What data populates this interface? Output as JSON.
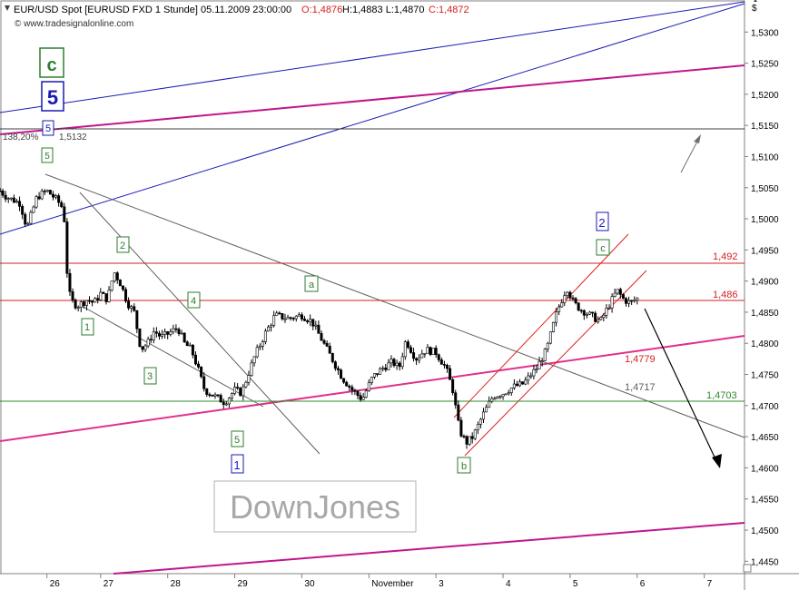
{
  "header": {
    "title_line": "EUR/USD Spot [EURUSD FXD  1 Stunde] 05.11.2009 23:00:00",
    "ohlc_open": "O:1,4876",
    "ohlc_hlc": "H:1,4883 L:1,4870",
    "ohlc_close": "C:1,4872",
    "source": "© www.tradesignalonline.com"
  },
  "watermark": "DownJones",
  "colors": {
    "candle": "#000000",
    "blue_line": "#1a1ab4",
    "magenta_line": "#c0168c",
    "pink_line": "#e0308c",
    "red_level": "#d42020",
    "green_level": "#2e8b2e",
    "grey_line": "#606060",
    "red_channel": "#e02020",
    "wave_green": "#2e7d2e",
    "wave_blue": "#1a1ab4"
  },
  "chart_data": {
    "type": "candlestick",
    "symbol": "EUR/USD",
    "timeframe": "1 Stunde",
    "ylabel": "$",
    "ylim": [
      1.443,
      1.535
    ],
    "y_ticks": [
      "1,5300",
      "1,5250",
      "1,5200",
      "1,5150",
      "1,5100",
      "1,5050",
      "1,5000",
      "1,4950",
      "1,4900",
      "1,4850",
      "1,4800",
      "1,4750",
      "1,4700",
      "1,4650",
      "1,4600",
      "1,4550",
      "1,4500",
      "1,4450"
    ],
    "x_ticks": [
      {
        "label": "26",
        "x": 0.2
      },
      {
        "label": "27",
        "x": 1
      },
      {
        "label": "28",
        "x": 2
      },
      {
        "label": "29",
        "x": 3
      },
      {
        "label": "30",
        "x": 4
      },
      {
        "label": "November",
        "x": 5
      },
      {
        "label": "3",
        "x": 6
      },
      {
        "label": "4",
        "x": 7
      },
      {
        "label": "5",
        "x": 8
      },
      {
        "label": "6",
        "x": 9
      },
      {
        "label": "7",
        "x": 10
      }
    ],
    "x_range": [
      -0.5,
      10.6
    ],
    "price_path": [
      [
        -0.5,
        1.5045
      ],
      [
        -0.4,
        1.5035
      ],
      [
        -0.2,
        1.5025
      ],
      [
        -0.1,
        1.4985
      ],
      [
        0.05,
        1.5035
      ],
      [
        0.2,
        1.5045
      ],
      [
        0.35,
        1.503
      ],
      [
        0.45,
        1.5015
      ],
      [
        0.5,
        1.4915
      ],
      [
        0.55,
        1.487
      ],
      [
        0.65,
        1.486
      ],
      [
        0.8,
        1.487
      ],
      [
        0.9,
        1.4865
      ],
      [
        1.0,
        1.488
      ],
      [
        1.1,
        1.487
      ],
      [
        1.2,
        1.4915
      ],
      [
        1.3,
        1.4895
      ],
      [
        1.4,
        1.4865
      ],
      [
        1.5,
        1.485
      ],
      [
        1.6,
        1.479
      ],
      [
        1.7,
        1.48
      ],
      [
        1.8,
        1.482
      ],
      [
        1.9,
        1.481
      ],
      [
        2.0,
        1.4815
      ],
      [
        2.15,
        1.4825
      ],
      [
        2.25,
        1.48
      ],
      [
        2.35,
        1.479
      ],
      [
        2.45,
        1.476
      ],
      [
        2.55,
        1.4725
      ],
      [
        2.7,
        1.4715
      ],
      [
        2.85,
        1.4705
      ],
      [
        3.0,
        1.4725
      ],
      [
        3.1,
        1.472
      ],
      [
        3.2,
        1.475
      ],
      [
        3.3,
        1.478
      ],
      [
        3.45,
        1.4815
      ],
      [
        3.6,
        1.4845
      ],
      [
        3.8,
        1.484
      ],
      [
        4.0,
        1.4845
      ],
      [
        4.15,
        1.4835
      ],
      [
        4.3,
        1.4805
      ],
      [
        4.45,
        1.4775
      ],
      [
        4.6,
        1.4745
      ],
      [
        4.75,
        1.4725
      ],
      [
        4.9,
        1.471
      ],
      [
        5.05,
        1.4745
      ],
      [
        5.2,
        1.476
      ],
      [
        5.35,
        1.477
      ],
      [
        5.45,
        1.476
      ],
      [
        5.55,
        1.4805
      ],
      [
        5.7,
        1.4775
      ],
      [
        5.85,
        1.479
      ],
      [
        6.0,
        1.4785
      ],
      [
        6.15,
        1.476
      ],
      [
        6.25,
        1.4725
      ],
      [
        6.35,
        1.466
      ],
      [
        6.45,
        1.464
      ],
      [
        6.55,
        1.465
      ],
      [
        6.7,
        1.4685
      ],
      [
        6.85,
        1.4715
      ],
      [
        7.0,
        1.472
      ],
      [
        7.15,
        1.473
      ],
      [
        7.3,
        1.4735
      ],
      [
        7.5,
        1.476
      ],
      [
        7.65,
        1.479
      ],
      [
        7.8,
        1.485
      ],
      [
        7.95,
        1.489
      ],
      [
        8.05,
        1.4865
      ],
      [
        8.15,
        1.4855
      ],
      [
        8.3,
        1.4845
      ],
      [
        8.45,
        1.4835
      ],
      [
        8.55,
        1.4855
      ],
      [
        8.7,
        1.4885
      ],
      [
        8.8,
        1.487
      ],
      [
        8.9,
        1.4865
      ],
      [
        9.0,
        1.4872
      ]
    ],
    "horizontal_levels": [
      {
        "value": 1.5132,
        "label": "1,5132",
        "fib_label": "138,20%",
        "color": "#404040"
      },
      {
        "value": 1.492,
        "label": "1,492",
        "color": "#d42020"
      },
      {
        "value": 1.486,
        "label": "1,486",
        "color": "#d42020"
      },
      {
        "value": 1.4703,
        "label": "1,4703",
        "color": "#2e8b2e"
      }
    ],
    "trendline_labels": [
      {
        "label": "1,4779",
        "color": "#d42020"
      },
      {
        "label": "1,4717",
        "color": "#606060"
      }
    ],
    "wave_labels_green": [
      "c",
      "5",
      "2",
      "1",
      "3",
      "4",
      "5",
      "a",
      "b",
      "c"
    ],
    "wave_labels_blue": [
      "5",
      "5",
      "2",
      "1"
    ],
    "annotations": [
      "up-arrow",
      "down-arrow"
    ]
  }
}
